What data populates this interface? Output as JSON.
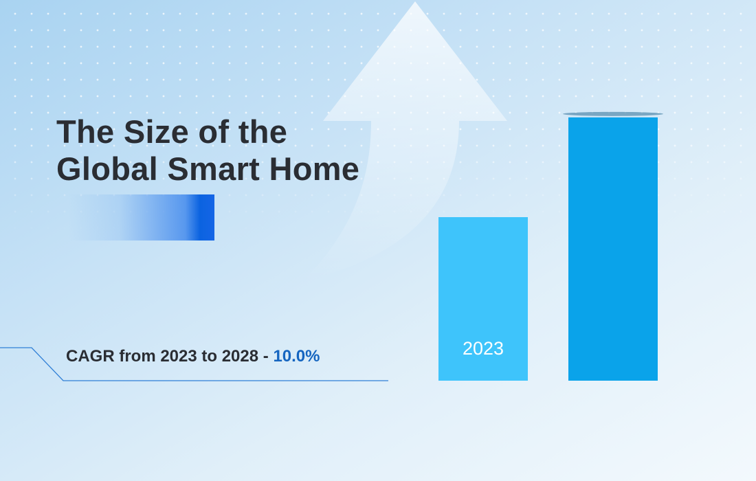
{
  "title": {
    "line1": "The Size of the",
    "line2": "Global Smart Home"
  },
  "cagr": {
    "label": "CAGR from 2023 to 2028 - ",
    "value": "10.0%",
    "value_color": "#1565c0"
  },
  "chart_data": {
    "type": "bar",
    "title": "The Size of the Global Smart Home",
    "categories": [
      "2023",
      ""
    ],
    "values": [
      1.0,
      1.61
    ],
    "value_note": "relative bar heights (no axis printed)",
    "colors": [
      "#3ec4fb",
      "#0aa3ea"
    ],
    "grid": false,
    "legend": "none"
  },
  "colors": {
    "text": "#2a2d33",
    "accent": "#1565e6"
  }
}
